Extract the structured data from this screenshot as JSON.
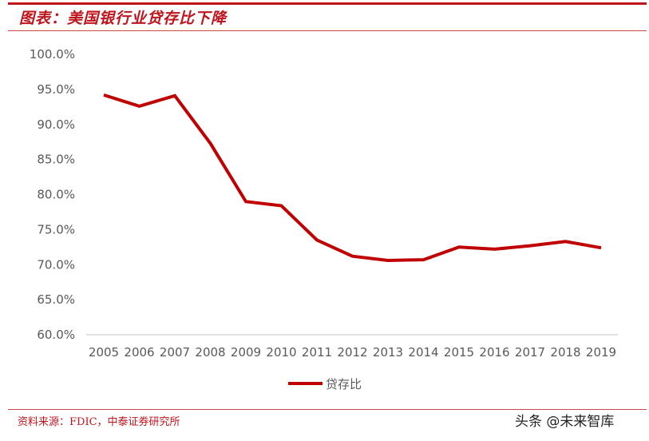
{
  "header": {
    "title": "图表：美国银行业贷存比下降"
  },
  "footer": {
    "source": "资料来源：FDIC，中泰证券研究所",
    "watermark": "头条 @未来智库"
  },
  "colors": {
    "accent": "#C0141C",
    "series_line": "#C00000",
    "axis_line": "#D9D9D9",
    "tick_text": "#595959"
  },
  "chart_data": {
    "type": "line",
    "title": "美国银行业贷存比下降",
    "xlabel": "",
    "ylabel": "",
    "ylim": [
      0.6,
      1.0
    ],
    "ytick_labels": [
      "100.0%",
      "95.0%",
      "90.0%",
      "85.0%",
      "80.0%",
      "75.0%",
      "70.0%",
      "65.0%",
      "60.0%"
    ],
    "x": [
      "2005",
      "2006",
      "2007",
      "2008",
      "2009",
      "2010",
      "2011",
      "2012",
      "2013",
      "2014",
      "2015",
      "2016",
      "2017",
      "2018",
      "2019"
    ],
    "series": [
      {
        "name": "贷存比",
        "values": [
          94.2,
          92.6,
          94.1,
          87.3,
          79.0,
          78.4,
          73.5,
          71.2,
          70.6,
          70.7,
          72.5,
          72.2,
          72.7,
          73.3,
          72.4
        ]
      }
    ],
    "grid": false,
    "legend_position": "bottom"
  }
}
